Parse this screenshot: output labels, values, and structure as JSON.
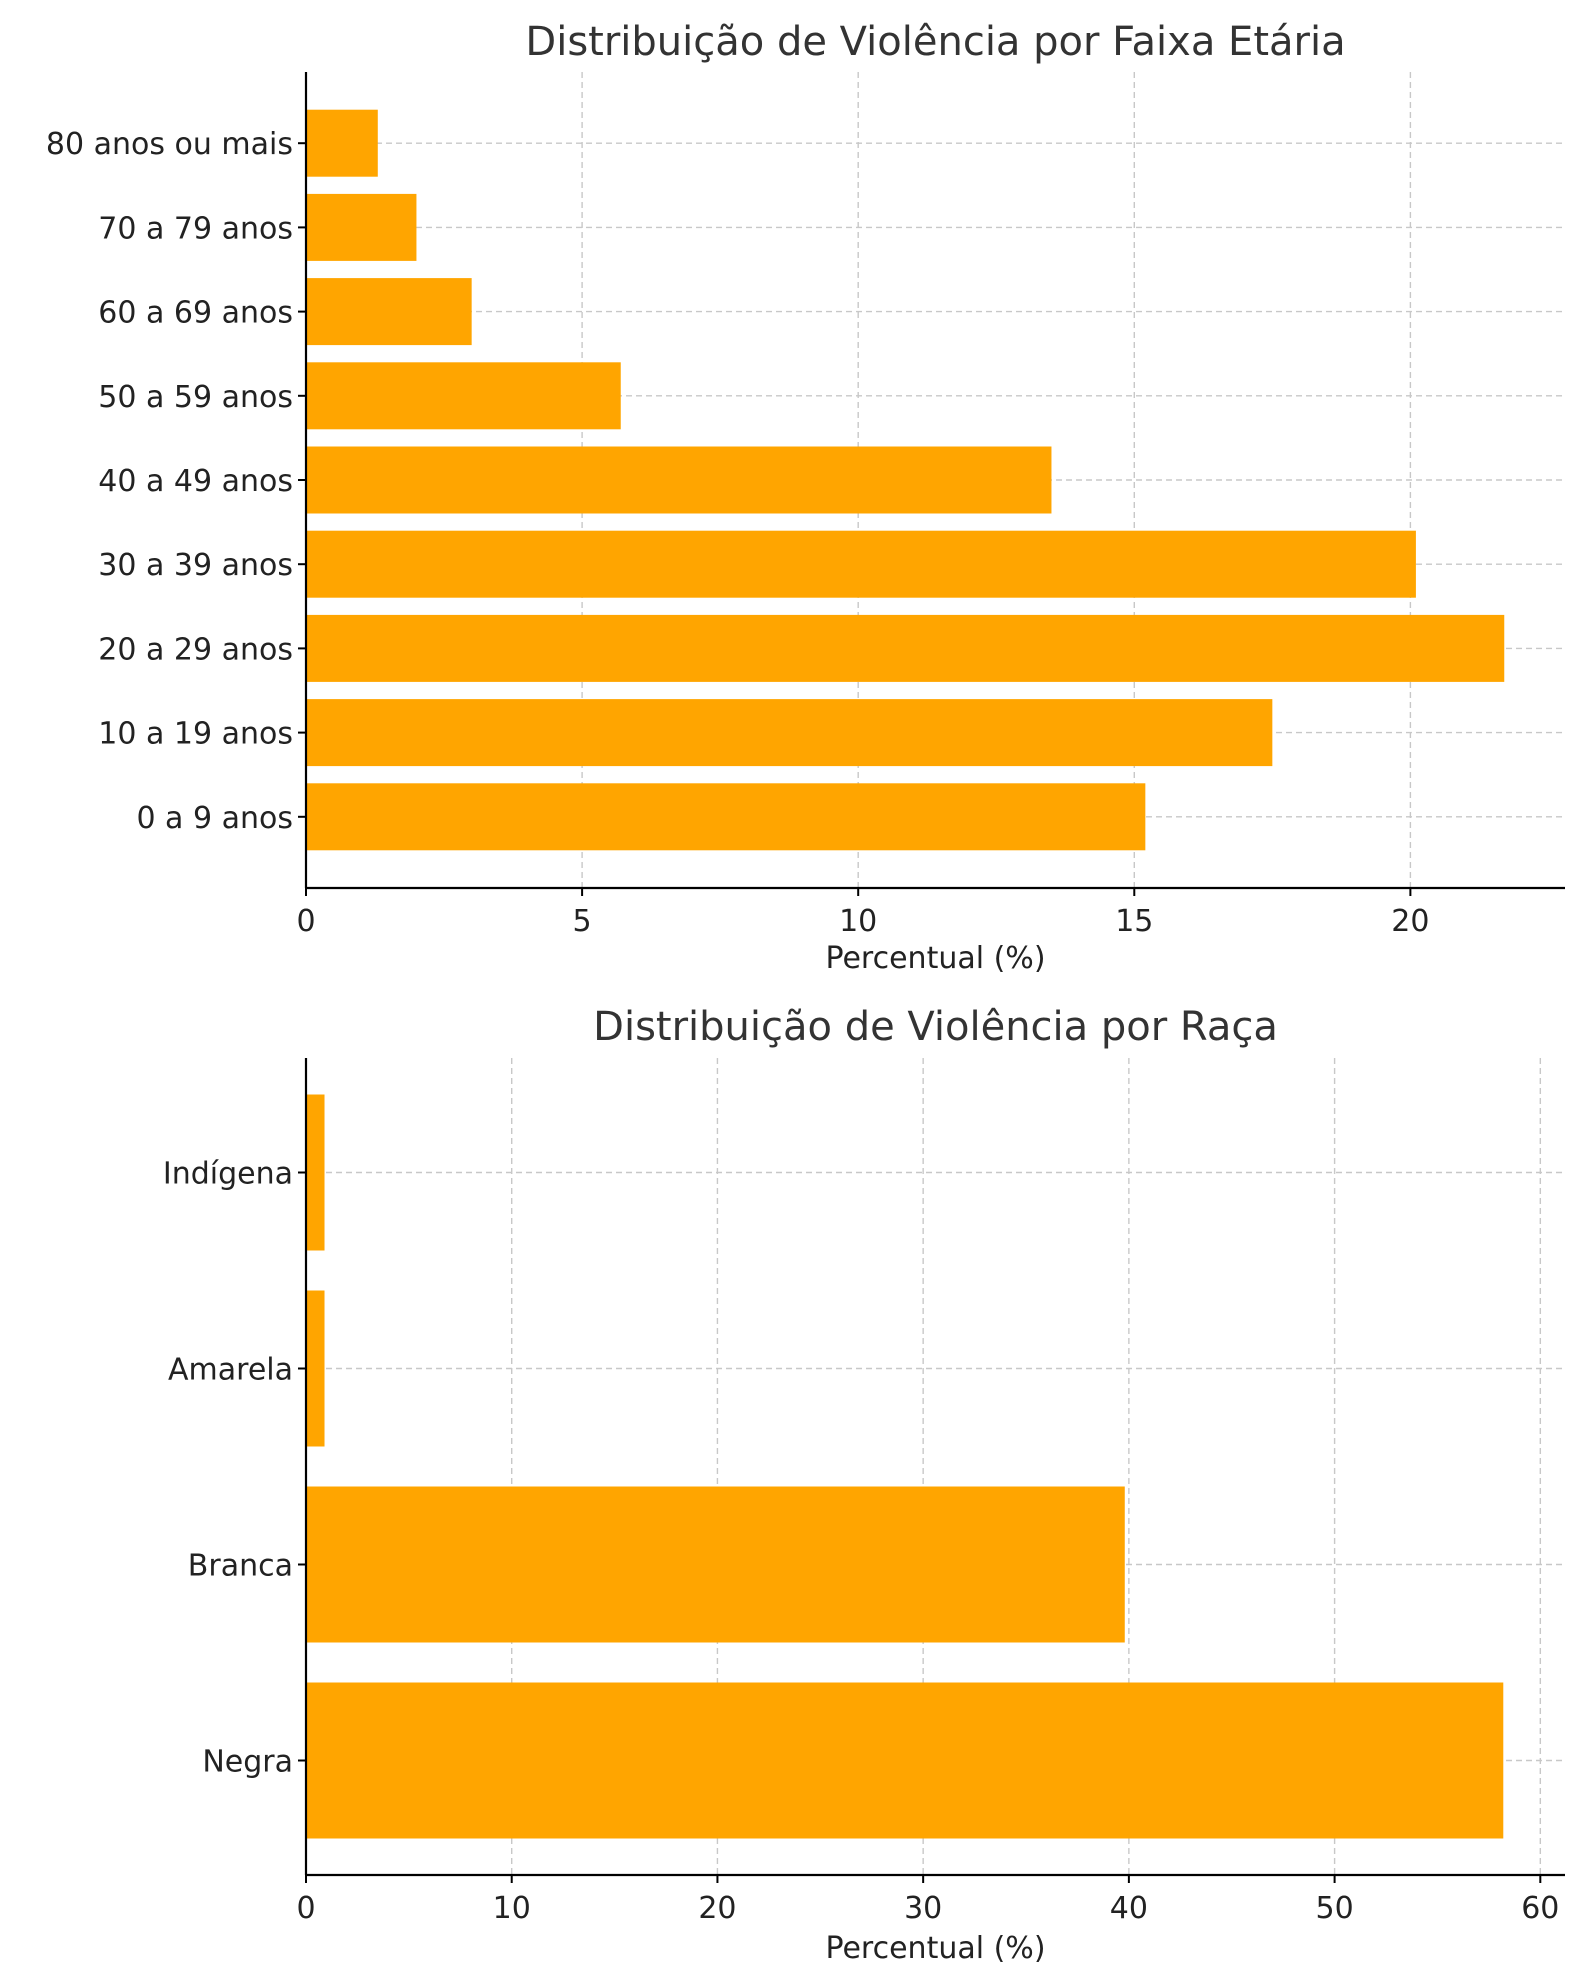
{
  "chart_data": [
    {
      "type": "bar",
      "orientation": "horizontal",
      "title": "Distribuição de Violência por Faixa Etária",
      "xlabel": "Percentual (%)",
      "ylabel": "",
      "xlim": [
        0,
        22.8
      ],
      "xticks": [
        0,
        5,
        10,
        15,
        20
      ],
      "grid": true,
      "color": "#ffa500",
      "categories": [
        "0 a 9 anos",
        "10 a 19 anos",
        "20 a 29 anos",
        "30 a 39 anos",
        "40 a 49 anos",
        "50 a 59 anos",
        "60 a 69 anos",
        "70 a 79 anos",
        "80 anos ou mais"
      ],
      "values": [
        15.2,
        17.5,
        21.7,
        20.1,
        13.5,
        5.7,
        3.0,
        2.0,
        1.3
      ]
    },
    {
      "type": "bar",
      "orientation": "horizontal",
      "title": "Distribuição de Violência por Raça",
      "xlabel": "Percentual (%)",
      "ylabel": "",
      "xlim": [
        0,
        61.2
      ],
      "xticks": [
        0,
        10,
        20,
        30,
        40,
        50,
        60
      ],
      "grid": true,
      "color": "#ffa500",
      "categories": [
        "Negra",
        "Branca",
        "Amarela",
        "Indígena"
      ],
      "values": [
        58.2,
        39.8,
        0.9,
        0.9
      ]
    }
  ]
}
